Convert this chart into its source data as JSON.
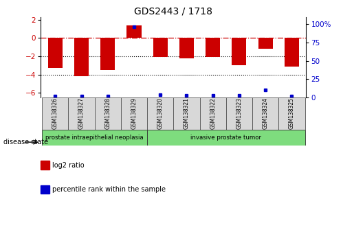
{
  "title": "GDS2443 / 1718",
  "samples": [
    "GSM138326",
    "GSM138327",
    "GSM138328",
    "GSM138329",
    "GSM138320",
    "GSM138321",
    "GSM138322",
    "GSM138323",
    "GSM138324",
    "GSM138325"
  ],
  "log2_ratio": [
    -3.3,
    -4.2,
    -3.5,
    1.4,
    -2.1,
    -2.2,
    -2.1,
    -3.0,
    -1.2,
    -3.1
  ],
  "percentile_rank": [
    2,
    2,
    2,
    97,
    4,
    3,
    3,
    3,
    10,
    2
  ],
  "ylim_left": [
    -6.5,
    2.3
  ],
  "ylim_right": [
    0,
    110
  ],
  "yticks_left": [
    -6,
    -4,
    -2,
    0,
    2
  ],
  "yticks_right": [
    0,
    25,
    50,
    75,
    100
  ],
  "group1_samples": 4,
  "group1_label": "prostate intraepithelial neoplasia",
  "group2_label": "invasive prostate tumor",
  "group_color": "#7edc7e",
  "bar_color": "#cc0000",
  "percentile_color": "#0000cc",
  "bar_width": 0.55,
  "dotted_lines": [
    -2,
    -4
  ],
  "background_color": "#ffffff",
  "legend_items": [
    {
      "label": "log2 ratio",
      "color": "#cc0000"
    },
    {
      "label": "percentile rank within the sample",
      "color": "#0000cc"
    }
  ]
}
